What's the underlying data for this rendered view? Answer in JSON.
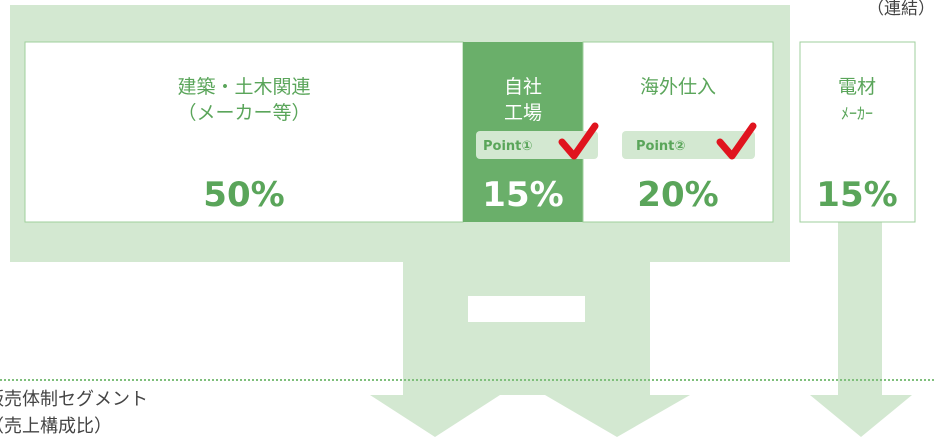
{
  "corner_note": "（連結）",
  "segments": [
    {
      "label_lines": [
        "建築・土木関連",
        "（メーカー等）"
      ],
      "share": "50%"
    },
    {
      "label_lines": [
        "自社",
        "工場"
      ],
      "share": "15%"
    },
    {
      "label_lines": [
        "海外仕入"
      ],
      "share": "20%"
    },
    {
      "label_lines": [
        "電材",
        "ﾒｰｶｰ"
      ],
      "share": "15%"
    }
  ],
  "points": [
    "Point①",
    "Point②"
  ],
  "footer": {
    "lines": [
      "販売体制セグメント",
      "（売上構成比）"
    ]
  }
}
